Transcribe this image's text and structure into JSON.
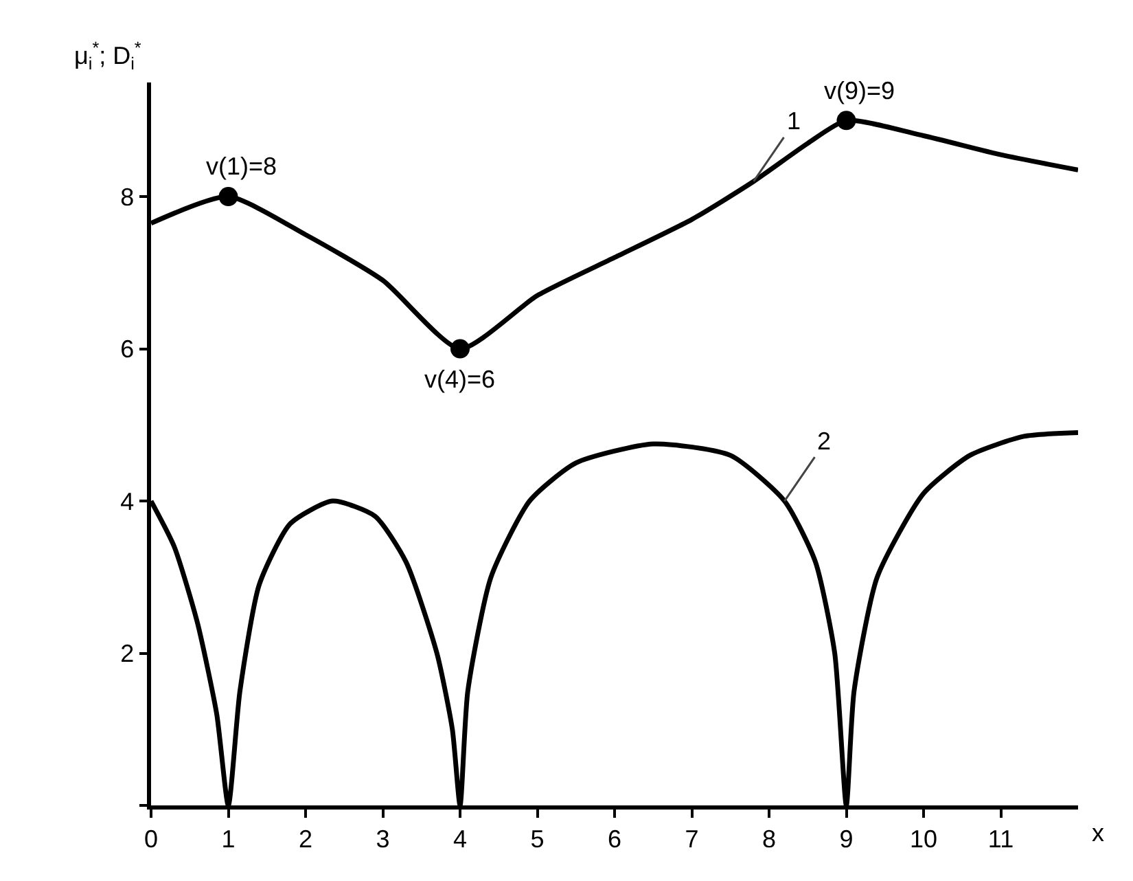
{
  "chart_data": {
    "type": "line",
    "ylabel": "μ$_{i}$$^{*}$; D$_{i}$$^{*}$",
    "xlabel": "x",
    "xlim": [
      0,
      12
    ],
    "xticks": [
      0,
      1,
      2,
      3,
      4,
      5,
      6,
      7,
      8,
      9,
      10,
      11
    ],
    "ylim": [
      0,
      9.5
    ],
    "yticks": [
      {
        "value": 0,
        "label": null
      },
      2,
      4,
      6,
      8
    ],
    "grid": false,
    "legend": false,
    "line_style": "solid",
    "marker": "none",
    "series": [
      {
        "name": "1",
        "color": "#000000",
        "x": [
          0,
          1,
          2,
          3,
          4,
          5,
          6,
          7,
          7.8,
          8.5,
          9,
          10,
          11,
          12
        ],
        "values": [
          7.65,
          8,
          7.5,
          6.9,
          6,
          6.7,
          7.2,
          7.7,
          8.2,
          8.7,
          9,
          8.8,
          8.55,
          8.35
        ]
      },
      {
        "name": "2",
        "color": "#000000",
        "x": [
          0,
          0.3,
          0.6,
          0.85,
          1,
          1.15,
          1.4,
          1.8,
          2.35,
          2.9,
          3.3,
          3.7,
          3.9,
          4,
          4.1,
          4.4,
          4.9,
          5.5,
          6.5,
          7.5,
          8.2,
          8.6,
          8.85,
          9,
          9.1,
          9.4,
          10,
          10.6,
          11.3,
          12
        ],
        "values": [
          4,
          3.4,
          2.4,
          1.2,
          0,
          1.5,
          2.9,
          3.7,
          4,
          3.8,
          3.2,
          2,
          1,
          0,
          1.5,
          3,
          4,
          4.5,
          4.75,
          4.6,
          4,
          3.2,
          2,
          0,
          1.5,
          3,
          4.1,
          4.6,
          4.85,
          4.9
        ]
      },
      {
        "type": "scatter",
        "marker": "circle",
        "color": "#000000",
        "x": [
          1,
          4,
          9
        ],
        "values": [
          8,
          6,
          9
        ]
      }
    ],
    "annotations": [
      {
        "text": "v(1)=8",
        "x": 1,
        "y": 8
      },
      {
        "text": "v(4)=6",
        "x": 4,
        "y": 6
      },
      {
        "text": "v(9)=9",
        "x": 9,
        "y": 9
      }
    ]
  }
}
